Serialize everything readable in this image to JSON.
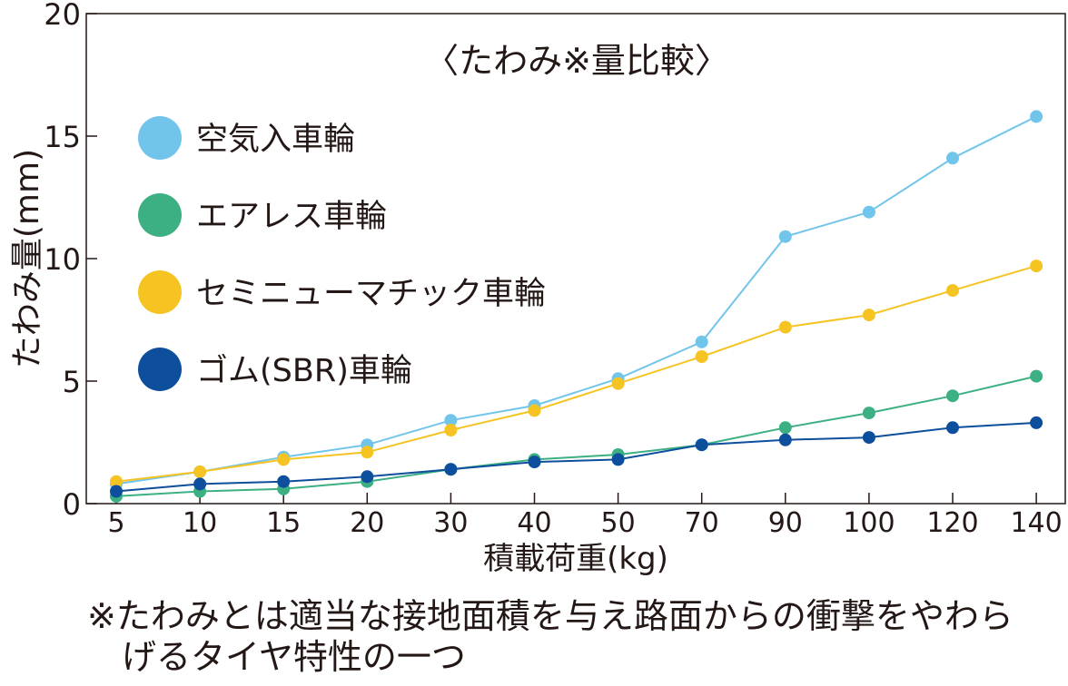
{
  "chart_data": {
    "type": "line",
    "title": "〈たわみ※量比較〉",
    "xlabel": "積載荷重(kg)",
    "ylabel": "たわみ量(mm)",
    "categories": [
      "5",
      "10",
      "15",
      "20",
      "30",
      "40",
      "50",
      "70",
      "90",
      "100",
      "120",
      "140"
    ],
    "ylim": [
      0,
      20
    ],
    "yticks": [
      "0",
      "5",
      "10",
      "15",
      "20"
    ],
    "grid": false,
    "legend_position": "top-left",
    "series": [
      {
        "name": "空気入車輪",
        "color": "#72c5ea",
        "values": [
          0.8,
          1.3,
          1.9,
          2.4,
          3.4,
          4.0,
          5.1,
          6.6,
          10.9,
          11.9,
          14.1,
          15.8
        ]
      },
      {
        "name": "エアレス車輪",
        "color": "#3db083",
        "values": [
          0.3,
          0.5,
          0.6,
          0.9,
          1.4,
          1.8,
          2.0,
          2.4,
          3.1,
          3.7,
          4.4,
          5.2
        ]
      },
      {
        "name": "セミニューマチック車輪",
        "color": "#f5c422",
        "values": [
          0.9,
          1.3,
          1.8,
          2.1,
          3.0,
          3.8,
          4.9,
          6.0,
          7.2,
          7.7,
          8.7,
          9.7
        ]
      },
      {
        "name": "ゴム(SBR)車輪",
        "color": "#0d4f9c",
        "values": [
          0.5,
          0.8,
          0.9,
          1.1,
          1.4,
          1.7,
          1.8,
          2.4,
          2.6,
          2.7,
          3.1,
          3.3
        ]
      }
    ]
  },
  "footnote": {
    "line1": "※たわみとは適当な接地面積を与え路面からの衝撃をやわら",
    "line2": "げるタイヤ特性の一つ"
  }
}
